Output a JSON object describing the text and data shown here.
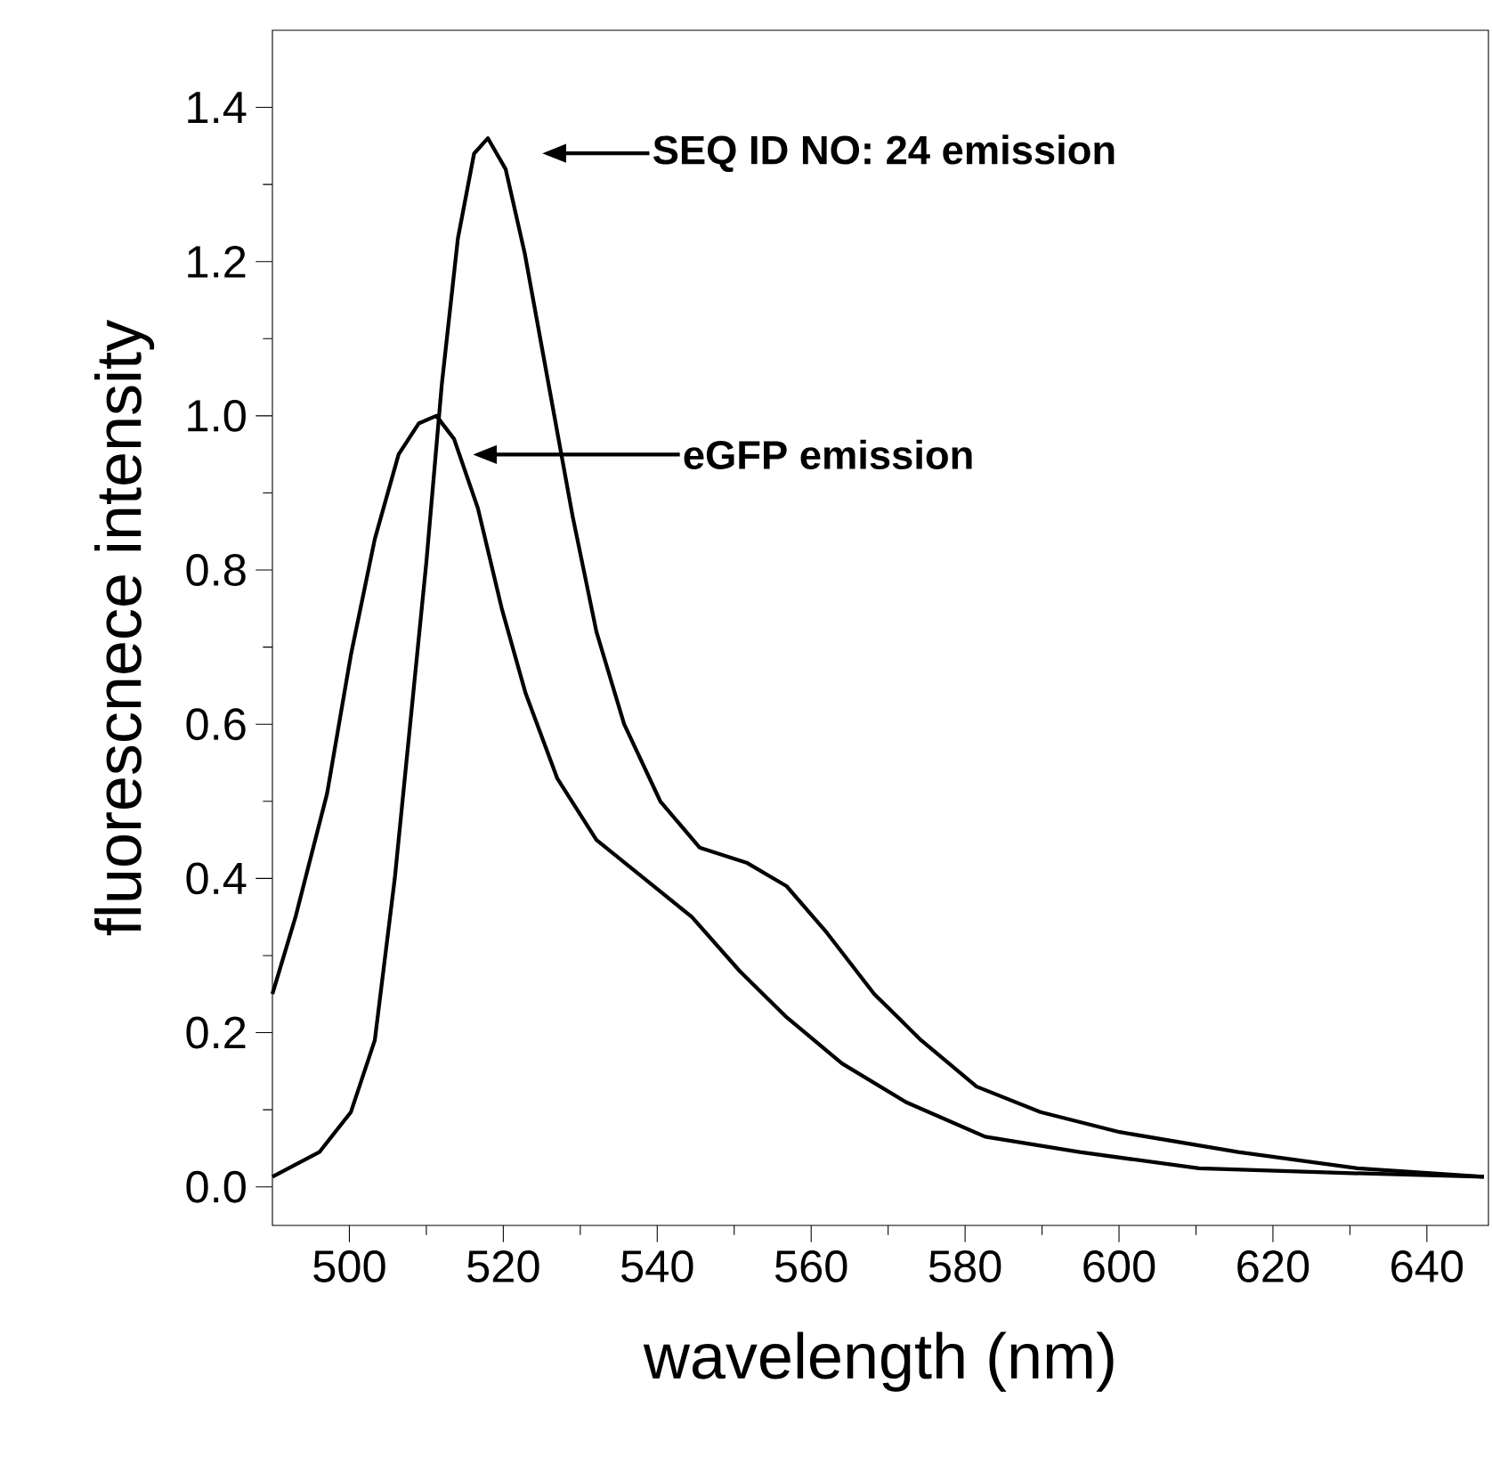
{
  "chart_data": {
    "type": "line",
    "xlabel": "wavelength (nm)",
    "ylabel": "fluorescnece intensity",
    "xlim": [
      490,
      648
    ],
    "ylim": [
      -0.05,
      1.5
    ],
    "xticks": [
      500,
      520,
      540,
      560,
      580,
      600,
      620,
      640
    ],
    "yticks": [
      {
        "value": 0,
        "label": "0.0"
      },
      0.2,
      0.4,
      0.6,
      0.8,
      {
        "value": 1,
        "label": "1.0"
      },
      1.2,
      1.4
    ],
    "grid": false,
    "marker": "none",
    "line_style": "solid",
    "series": [
      {
        "color": "#000000",
        "x": [
          490,
          493,
          497.1,
          500.2,
          503.3,
          506.4,
          509,
          511.3,
          513.6,
          516.7,
          519.8,
          522.9,
          527,
          532.1,
          538.3,
          544.5,
          550.7,
          556.8,
          564,
          572.3,
          582.6,
          594.9,
          610.4,
          625.8,
          647.4
        ],
        "values": [
          0.25,
          0.35,
          0.51,
          0.69,
          0.84,
          0.95,
          0.99,
          1.0,
          0.97,
          0.88,
          0.75,
          0.64,
          0.53,
          0.45,
          0.4,
          0.35,
          0.28,
          0.22,
          0.16,
          0.11,
          0.065,
          0.045,
          0.024,
          0.019,
          0.013
        ]
      },
      {
        "color": "#000000",
        "x": [
          490,
          496.1,
          500.2,
          503.3,
          505.9,
          507.9,
          510,
          512,
          514.1,
          516.2,
          518,
          520.3,
          522.8,
          525.9,
          529,
          532.1,
          535.7,
          540.4,
          545.5,
          551.7,
          556.8,
          562,
          568.2,
          574.3,
          581.5,
          589.8,
          600.1,
          615.5,
          631,
          647.4
        ],
        "values": [
          0.013,
          0.045,
          0.097,
          0.19,
          0.4,
          0.6,
          0.81,
          1.04,
          1.23,
          1.34,
          1.36,
          1.32,
          1.21,
          1.04,
          0.87,
          0.72,
          0.6,
          0.5,
          0.44,
          0.42,
          0.39,
          0.33,
          0.25,
          0.19,
          0.13,
          0.097,
          0.071,
          0.045,
          0.024,
          0.013
        ]
      }
    ],
    "annotations": [
      "SEQ ID NO: 24 emission",
      "eGFP emission"
    ]
  }
}
